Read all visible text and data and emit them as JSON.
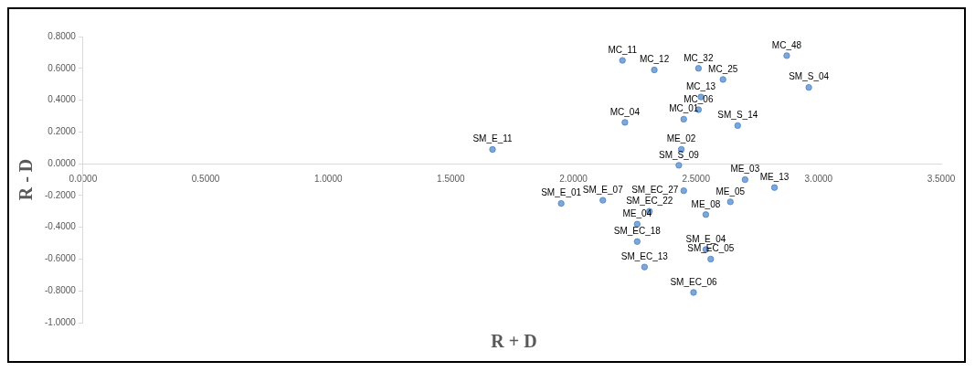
{
  "chart_data": {
    "type": "scatter",
    "xlabel": "R + D",
    "ylabel": "R - D",
    "xlim": [
      0,
      3.5
    ],
    "xticks": [
      {
        "value": 0,
        "label": "0.0000"
      },
      {
        "value": 0.5,
        "label": "0.5000"
      },
      {
        "value": 1,
        "label": "1.0000"
      },
      {
        "value": 1.5,
        "label": "1.5000"
      },
      {
        "value": 2,
        "label": "2.0000"
      },
      {
        "value": 2.5,
        "label": "2.5000"
      },
      {
        "value": 3,
        "label": "3.0000"
      },
      {
        "value": 3.5,
        "label": "3.5000"
      }
    ],
    "ylim": [
      -1,
      0.8
    ],
    "yticks": [
      {
        "value": -1,
        "label": "-1.0000"
      },
      {
        "value": -0.8,
        "label": "-0.8000"
      },
      {
        "value": -0.6,
        "label": "-0.6000"
      },
      {
        "value": -0.4,
        "label": "-0.4000"
      },
      {
        "value": -0.2,
        "label": "-0.2000"
      },
      {
        "value": 0,
        "label": "0.0000"
      },
      {
        "value": 0.2,
        "label": "0.2000"
      },
      {
        "value": 0.4,
        "label": "0.4000"
      },
      {
        "value": 0.6,
        "label": "0.6000"
      },
      {
        "value": 0.8,
        "label": "0.8000"
      }
    ],
    "grid": false,
    "legend": false,
    "marker": "circle",
    "series": [
      {
        "color": "#7aa7dc",
        "x": [
          2.2,
          2.33,
          2.51,
          2.61,
          2.87,
          2.96,
          2.52,
          2.51,
          2.45,
          2.21,
          2.67,
          2.44,
          2.43,
          1.67,
          2.7,
          2.82,
          2.45,
          2.64,
          1.95,
          2.12,
          2.31,
          2.54,
          2.26,
          2.26,
          2.54,
          2.56,
          2.29,
          2.49
        ],
        "values": [
          0.65,
          0.59,
          0.6,
          0.53,
          0.68,
          0.48,
          0.42,
          0.34,
          0.28,
          0.26,
          0.24,
          0.09,
          -0.01,
          0.09,
          -0.1,
          -0.15,
          -0.17,
          -0.24,
          -0.25,
          -0.23,
          -0.3,
          -0.32,
          -0.38,
          -0.49,
          -0.54,
          -0.6,
          -0.65,
          -0.81
        ]
      }
    ],
    "annotations": [
      {
        "text": "MC_11",
        "x": 2.2,
        "y": 0.65
      },
      {
        "text": "MC_12",
        "x": 2.33,
        "y": 0.59
      },
      {
        "text": "MC_32",
        "x": 2.51,
        "y": 0.6
      },
      {
        "text": "MC_25",
        "x": 2.61,
        "y": 0.53
      },
      {
        "text": "MC_48",
        "x": 2.87,
        "y": 0.68
      },
      {
        "text": "SM_S_04",
        "x": 2.96,
        "y": 0.48
      },
      {
        "text": "MC_13",
        "x": 2.52,
        "y": 0.42
      },
      {
        "text": "MC_06",
        "x": 2.51,
        "y": 0.34
      },
      {
        "text": "MC_01",
        "x": 2.45,
        "y": 0.28
      },
      {
        "text": "MC_04",
        "x": 2.21,
        "y": 0.26
      },
      {
        "text": "SM_S_14",
        "x": 2.67,
        "y": 0.24
      },
      {
        "text": "ME_02",
        "x": 2.44,
        "y": 0.09
      },
      {
        "text": "SM_S_09",
        "x": 2.43,
        "y": -0.01
      },
      {
        "text": "SM_E_11",
        "x": 1.67,
        "y": 0.09
      },
      {
        "text": "ME_03",
        "x": 2.7,
        "y": -0.1
      },
      {
        "text": "ME_13",
        "x": 2.82,
        "y": -0.15
      },
      {
        "text": "SM_EC_27",
        "x": 2.45,
        "y": -0.17
      },
      {
        "text": "ME_05",
        "x": 2.64,
        "y": -0.24
      },
      {
        "text": "SM_E_01",
        "x": 1.95,
        "y": -0.25
      },
      {
        "text": "SM_E_07",
        "x": 2.12,
        "y": -0.23
      },
      {
        "text": "SM_EC_22",
        "x": 2.31,
        "y": -0.3
      },
      {
        "text": "ME_08",
        "x": 2.54,
        "y": -0.32
      },
      {
        "text": "ME_04",
        "x": 2.26,
        "y": -0.38
      },
      {
        "text": "SM_EC_18",
        "x": 2.26,
        "y": -0.49
      },
      {
        "text": "SM_E_04",
        "x": 2.54,
        "y": -0.54
      },
      {
        "text": "SM_EC_05",
        "x": 2.56,
        "y": -0.6
      },
      {
        "text": "SM_EC_13",
        "x": 2.29,
        "y": -0.65
      },
      {
        "text": "SM_EC_06",
        "x": 2.49,
        "y": -0.81
      }
    ]
  }
}
